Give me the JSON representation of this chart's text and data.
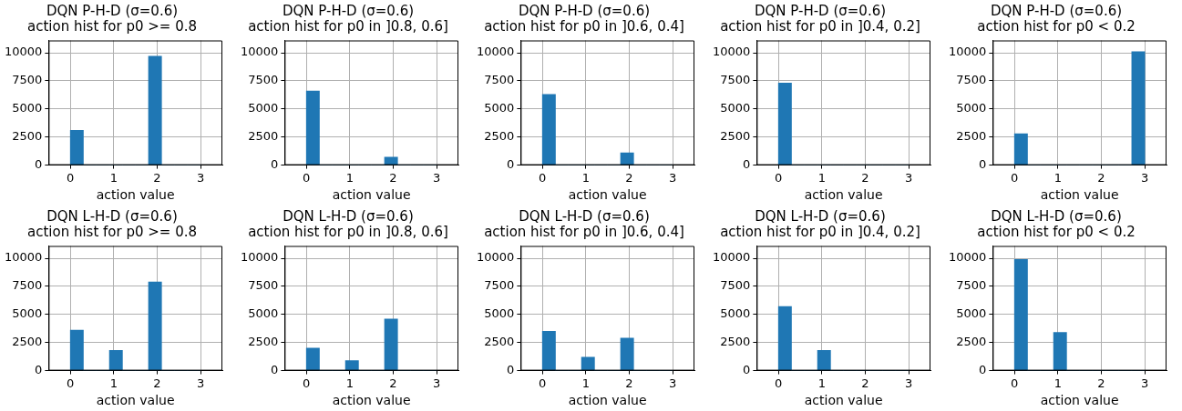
{
  "chart_data": [
    {
      "type": "histogram",
      "title": "DQN P-H-D (σ=0.6)\naction hist for p0 >= 0.8",
      "xlabel": "action value",
      "bins": [
        0,
        0.3,
        0.6,
        0.9,
        1.2,
        1.5,
        1.8,
        2.1,
        2.4,
        2.7,
        3.0
      ],
      "values": [
        3100,
        0,
        0,
        0,
        0,
        0,
        9700,
        0,
        0,
        0
      ],
      "color": "#1f77b4",
      "xlim": [
        -0.5,
        3.5
      ],
      "xticks": [
        0,
        1,
        2,
        3
      ],
      "ylim": [
        0,
        11100
      ],
      "yticks": [
        0,
        2500,
        5000,
        7500,
        10000
      ],
      "grid": true
    },
    {
      "type": "histogram",
      "title": "DQN P-H-D (σ=0.6)\naction hist for p0 in ]0.8, 0.6]",
      "xlabel": "action value",
      "bins": [
        0,
        0.3,
        0.6,
        0.9,
        1.2,
        1.5,
        1.8,
        2.1,
        2.4,
        2.7,
        3.0
      ],
      "values": [
        6600,
        0,
        0,
        0,
        0,
        0,
        700,
        0,
        0,
        0
      ],
      "color": "#1f77b4",
      "xlim": [
        -0.5,
        3.5
      ],
      "xticks": [
        0,
        1,
        2,
        3
      ],
      "ylim": [
        0,
        11100
      ],
      "yticks": [
        0,
        2500,
        5000,
        7500,
        10000
      ],
      "grid": true
    },
    {
      "type": "histogram",
      "title": "DQN P-H-D (σ=0.6)\naction hist for p0 in ]0.6, 0.4]",
      "xlabel": "action value",
      "bins": [
        0,
        0.3,
        0.6,
        0.9,
        1.2,
        1.5,
        1.8,
        2.1,
        2.4,
        2.7,
        3.0
      ],
      "values": [
        6300,
        0,
        0,
        0,
        0,
        0,
        1100,
        0,
        0,
        0
      ],
      "color": "#1f77b4",
      "xlim": [
        -0.5,
        3.5
      ],
      "xticks": [
        0,
        1,
        2,
        3
      ],
      "ylim": [
        0,
        11100
      ],
      "yticks": [
        0,
        2500,
        5000,
        7500,
        10000
      ],
      "grid": true
    },
    {
      "type": "histogram",
      "title": "DQN P-H-D (σ=0.6)\naction hist for p0 in ]0.4, 0.2]",
      "xlabel": "action value",
      "bins": [
        0,
        0.3,
        0.6,
        0.9,
        1.2,
        1.5,
        1.8,
        2.1,
        2.4,
        2.7,
        3.0
      ],
      "values": [
        7300,
        0,
        0,
        0,
        0,
        0,
        0,
        0,
        0,
        0
      ],
      "color": "#1f77b4",
      "xlim": [
        -0.5,
        3.5
      ],
      "xticks": [
        0,
        1,
        2,
        3
      ],
      "ylim": [
        0,
        11100
      ],
      "yticks": [
        0,
        2500,
        5000,
        7500,
        10000
      ],
      "grid": true
    },
    {
      "type": "histogram",
      "title": "DQN P-H-D (σ=0.6)\naction hist for p0 < 0.2",
      "xlabel": "action value",
      "bins": [
        0,
        0.3,
        0.6,
        0.9,
        1.2,
        1.5,
        1.8,
        2.1,
        2.4,
        2.7,
        3.0
      ],
      "values": [
        2800,
        0,
        0,
        0,
        0,
        0,
        0,
        0,
        0,
        10100
      ],
      "color": "#1f77b4",
      "xlim": [
        -0.5,
        3.5
      ],
      "xticks": [
        0,
        1,
        2,
        3
      ],
      "ylim": [
        0,
        11100
      ],
      "yticks": [
        0,
        2500,
        5000,
        7500,
        10000
      ],
      "grid": true
    },
    {
      "type": "histogram",
      "title": "DQN L-H-D (σ=0.6)\naction hist for p0 >= 0.8",
      "xlabel": "action value",
      "bins": [
        0,
        0.3,
        0.6,
        0.9,
        1.2,
        1.5,
        1.8,
        2.1,
        2.4,
        2.7,
        3.0
      ],
      "values": [
        3600,
        0,
        0,
        1800,
        0,
        0,
        7900,
        0,
        0,
        0
      ],
      "color": "#1f77b4",
      "xlim": [
        -0.5,
        3.5
      ],
      "xticks": [
        0,
        1,
        2,
        3
      ],
      "ylim": [
        0,
        11100
      ],
      "yticks": [
        0,
        2500,
        5000,
        7500,
        10000
      ],
      "grid": true
    },
    {
      "type": "histogram",
      "title": "DQN L-H-D (σ=0.6)\naction hist for p0 in ]0.8, 0.6]",
      "xlabel": "action value",
      "bins": [
        0,
        0.3,
        0.6,
        0.9,
        1.2,
        1.5,
        1.8,
        2.1,
        2.4,
        2.7,
        3.0
      ],
      "values": [
        2000,
        0,
        0,
        900,
        0,
        0,
        4600,
        0,
        0,
        0
      ],
      "color": "#1f77b4",
      "xlim": [
        -0.5,
        3.5
      ],
      "xticks": [
        0,
        1,
        2,
        3
      ],
      "ylim": [
        0,
        11100
      ],
      "yticks": [
        0,
        2500,
        5000,
        7500,
        10000
      ],
      "grid": true
    },
    {
      "type": "histogram",
      "title": "DQN L-H-D (σ=0.6)\naction hist for p0 in ]0.6, 0.4]",
      "xlabel": "action value",
      "bins": [
        0,
        0.3,
        0.6,
        0.9,
        1.2,
        1.5,
        1.8,
        2.1,
        2.4,
        2.7,
        3.0
      ],
      "values": [
        3500,
        0,
        0,
        1200,
        0,
        0,
        2900,
        0,
        0,
        0
      ],
      "color": "#1f77b4",
      "xlim": [
        -0.5,
        3.5
      ],
      "xticks": [
        0,
        1,
        2,
        3
      ],
      "ylim": [
        0,
        11100
      ],
      "yticks": [
        0,
        2500,
        5000,
        7500,
        10000
      ],
      "grid": true
    },
    {
      "type": "histogram",
      "title": "DQN L-H-D (σ=0.6)\naction hist for p0 in ]0.4, 0.2]",
      "xlabel": "action value",
      "bins": [
        0,
        0.3,
        0.6,
        0.9,
        1.2,
        1.5,
        1.8,
        2.1,
        2.4,
        2.7,
        3.0
      ],
      "values": [
        5700,
        0,
        0,
        1800,
        0,
        0,
        0,
        0,
        0,
        0
      ],
      "color": "#1f77b4",
      "xlim": [
        -0.5,
        3.5
      ],
      "xticks": [
        0,
        1,
        2,
        3
      ],
      "ylim": [
        0,
        11100
      ],
      "yticks": [
        0,
        2500,
        5000,
        7500,
        10000
      ],
      "grid": true
    },
    {
      "type": "histogram",
      "title": "DQN L-H-D (σ=0.6)\naction hist for p0 < 0.2",
      "xlabel": "action value",
      "bins": [
        0,
        0.3,
        0.6,
        0.9,
        1.2,
        1.5,
        1.8,
        2.1,
        2.4,
        2.7,
        3.0
      ],
      "values": [
        9900,
        0,
        0,
        3400,
        0,
        0,
        0,
        0,
        0,
        0
      ],
      "color": "#1f77b4",
      "xlim": [
        -0.5,
        3.5
      ],
      "xticks": [
        0,
        1,
        2,
        3
      ],
      "ylim": [
        0,
        11100
      ],
      "yticks": [
        0,
        2500,
        5000,
        7500,
        10000
      ],
      "grid": true
    }
  ]
}
